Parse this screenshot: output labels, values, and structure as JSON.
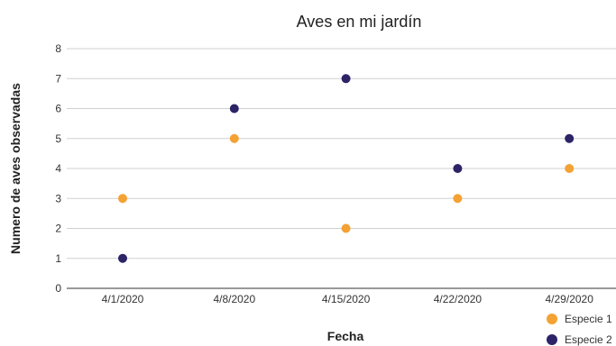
{
  "chart_data": {
    "type": "scatter",
    "title": "Aves en mi jardín",
    "xlabel": "Fecha",
    "ylabel": "Numero de aves observadas",
    "categories": [
      "4/1/2020",
      "4/8/2020",
      "4/15/2020",
      "4/22/2020",
      "4/29/2020"
    ],
    "ylim": [
      0,
      8
    ],
    "yticks": [
      "0",
      "1",
      "2",
      "3",
      "4",
      "5",
      "6",
      "7",
      "8"
    ],
    "grid": true,
    "legend_position": "bottom-right",
    "series": [
      {
        "name": "Especie 1",
        "color": "#f4a234",
        "values": [
          3,
          5,
          2,
          3,
          4
        ]
      },
      {
        "name": "Especie 2",
        "color": "#2d2367",
        "values": [
          1,
          6,
          7,
          4,
          5
        ]
      }
    ]
  }
}
